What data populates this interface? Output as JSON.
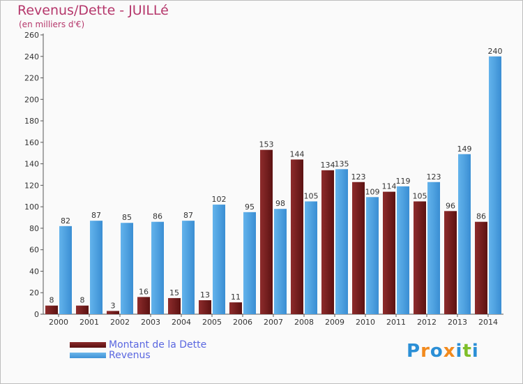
{
  "title": "Revenus/Dette - JUILLé",
  "subtitle": "(en milliers d'€)",
  "colors": {
    "dette": "#7a1f1f",
    "revenus": "#4aa3e6",
    "title": "#b5376b",
    "legend_text": "#5a67e0"
  },
  "legend": [
    {
      "label": "Montant de la Dette",
      "color": "#7a1f1f"
    },
    {
      "label": "Revenus",
      "color": "#4aa3e6"
    }
  ],
  "logo": {
    "text": "Proxiti",
    "letters": [
      {
        "ch": "P",
        "color": "#2b8fd6"
      },
      {
        "ch": "r",
        "color": "#f28a1d"
      },
      {
        "ch": "o",
        "color": "#2b8fd6"
      },
      {
        "ch": "x",
        "color": "#f28a1d"
      },
      {
        "ch": "i",
        "color": "#2b8fd6"
      },
      {
        "ch": "t",
        "color": "#7fbf2a"
      },
      {
        "ch": "i",
        "color": "#2b8fd6"
      }
    ]
  },
  "chart_data": {
    "type": "bar",
    "categories": [
      "2000",
      "2001",
      "2002",
      "2003",
      "2004",
      "2005",
      "2006",
      "2007",
      "2008",
      "2009",
      "2010",
      "2011",
      "2012",
      "2013",
      "2014"
    ],
    "series": [
      {
        "name": "Montant de la Dette",
        "values": [
          8,
          8,
          3,
          16,
          15,
          13,
          11,
          153,
          144,
          134,
          123,
          114,
          105,
          96,
          86
        ]
      },
      {
        "name": "Revenus",
        "values": [
          82,
          87,
          85,
          86,
          87,
          102,
          95,
          98,
          105,
          135,
          109,
          119,
          123,
          149,
          240
        ]
      }
    ],
    "y_ticks": [
      0,
      20,
      40,
      60,
      80,
      100,
      120,
      140,
      160,
      180,
      200,
      220,
      240,
      260
    ],
    "ylim": [
      0,
      260
    ],
    "grid": false,
    "legend_position": "bottom-left"
  }
}
